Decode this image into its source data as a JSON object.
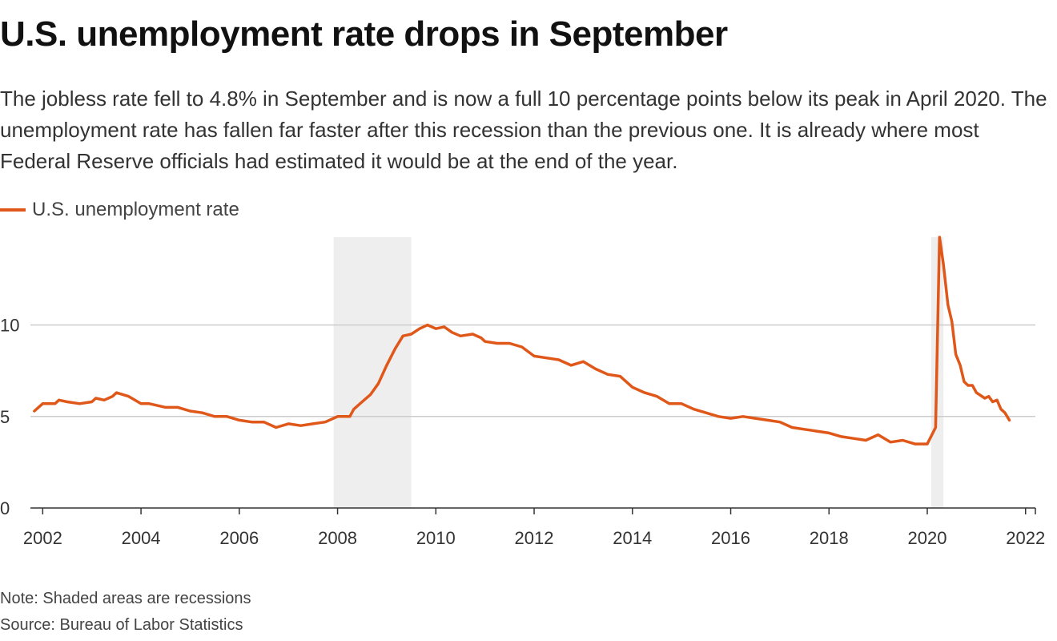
{
  "header": {
    "title": "U.S. unemployment rate drops in September",
    "subtitle": "The jobless rate fell to 4.8% in September and is now a full 10 percentage points below its peak in April 2020. The unemployment rate has fallen far faster after this recession than the previous one. It is already where most Federal Reserve officials had estimated it would be at the end of the year."
  },
  "footer": {
    "note": "Note: Shaded areas are recessions",
    "source": "Source: Bureau of Labor Statistics"
  },
  "colors": {
    "line": "#e0571a",
    "recession": "#eeeeee",
    "grid": "#cccccc",
    "axis": "#333333"
  },
  "chart_data": {
    "type": "line",
    "title": "U.S. unemployment rate drops in September",
    "series": [
      {
        "name": "U.S. unemployment rate",
        "color": "#e0571a"
      }
    ],
    "legend": "top-left",
    "grid": true,
    "xlim": [
      2001.75,
      2022.2
    ],
    "ylim": [
      0,
      14.8
    ],
    "x_ticks": [
      "2002",
      "2004",
      "2006",
      "2008",
      "2010",
      "2012",
      "2014",
      "2016",
      "2018",
      "2020",
      "2022"
    ],
    "y_ticks": [
      "0",
      "5",
      "10"
    ],
    "recessions": [
      {
        "start": 2007.92,
        "end": 2009.5
      },
      {
        "start": 2020.08,
        "end": 2020.33
      }
    ],
    "points": [
      [
        2001.83,
        5.3
      ],
      [
        2002.0,
        5.7
      ],
      [
        2002.25,
        5.7
      ],
      [
        2002.33,
        5.9
      ],
      [
        2002.5,
        5.8
      ],
      [
        2002.75,
        5.7
      ],
      [
        2003.0,
        5.8
      ],
      [
        2003.08,
        6.0
      ],
      [
        2003.25,
        5.9
      ],
      [
        2003.42,
        6.1
      ],
      [
        2003.5,
        6.3
      ],
      [
        2003.75,
        6.1
      ],
      [
        2004.0,
        5.7
      ],
      [
        2004.17,
        5.7
      ],
      [
        2004.5,
        5.5
      ],
      [
        2004.75,
        5.5
      ],
      [
        2005.0,
        5.3
      ],
      [
        2005.25,
        5.2
      ],
      [
        2005.5,
        5.0
      ],
      [
        2005.75,
        5.0
      ],
      [
        2006.0,
        4.8
      ],
      [
        2006.25,
        4.7
      ],
      [
        2006.5,
        4.7
      ],
      [
        2006.75,
        4.4
      ],
      [
        2007.0,
        4.6
      ],
      [
        2007.25,
        4.5
      ],
      [
        2007.5,
        4.6
      ],
      [
        2007.75,
        4.7
      ],
      [
        2008.0,
        5.0
      ],
      [
        2008.25,
        5.0
      ],
      [
        2008.33,
        5.4
      ],
      [
        2008.5,
        5.8
      ],
      [
        2008.67,
        6.2
      ],
      [
        2008.83,
        6.8
      ],
      [
        2009.0,
        7.8
      ],
      [
        2009.17,
        8.7
      ],
      [
        2009.33,
        9.4
      ],
      [
        2009.5,
        9.5
      ],
      [
        2009.67,
        9.8
      ],
      [
        2009.83,
        10.0
      ],
      [
        2010.0,
        9.8
      ],
      [
        2010.17,
        9.9
      ],
      [
        2010.33,
        9.6
      ],
      [
        2010.5,
        9.4
      ],
      [
        2010.75,
        9.5
      ],
      [
        2010.92,
        9.3
      ],
      [
        2011.0,
        9.1
      ],
      [
        2011.25,
        9.0
      ],
      [
        2011.5,
        9.0
      ],
      [
        2011.75,
        8.8
      ],
      [
        2012.0,
        8.3
      ],
      [
        2012.25,
        8.2
      ],
      [
        2012.5,
        8.1
      ],
      [
        2012.75,
        7.8
      ],
      [
        2013.0,
        8.0
      ],
      [
        2013.25,
        7.6
      ],
      [
        2013.5,
        7.3
      ],
      [
        2013.75,
        7.2
      ],
      [
        2014.0,
        6.6
      ],
      [
        2014.25,
        6.3
      ],
      [
        2014.5,
        6.1
      ],
      [
        2014.75,
        5.7
      ],
      [
        2015.0,
        5.7
      ],
      [
        2015.25,
        5.4
      ],
      [
        2015.5,
        5.2
      ],
      [
        2015.75,
        5.0
      ],
      [
        2016.0,
        4.9
      ],
      [
        2016.25,
        5.0
      ],
      [
        2016.5,
        4.9
      ],
      [
        2016.75,
        4.8
      ],
      [
        2017.0,
        4.7
      ],
      [
        2017.25,
        4.4
      ],
      [
        2017.5,
        4.3
      ],
      [
        2017.75,
        4.2
      ],
      [
        2018.0,
        4.1
      ],
      [
        2018.25,
        3.9
      ],
      [
        2018.5,
        3.8
      ],
      [
        2018.75,
        3.7
      ],
      [
        2019.0,
        4.0
      ],
      [
        2019.25,
        3.6
      ],
      [
        2019.5,
        3.7
      ],
      [
        2019.75,
        3.5
      ],
      [
        2020.0,
        3.5
      ],
      [
        2020.17,
        4.4
      ],
      [
        2020.25,
        14.8
      ],
      [
        2020.33,
        13.3
      ],
      [
        2020.42,
        11.1
      ],
      [
        2020.5,
        10.2
      ],
      [
        2020.58,
        8.4
      ],
      [
        2020.67,
        7.8
      ],
      [
        2020.75,
        6.9
      ],
      [
        2020.83,
        6.7
      ],
      [
        2020.92,
        6.7
      ],
      [
        2021.0,
        6.3
      ],
      [
        2021.17,
        6.0
      ],
      [
        2021.25,
        6.1
      ],
      [
        2021.33,
        5.8
      ],
      [
        2021.42,
        5.9
      ],
      [
        2021.5,
        5.4
      ],
      [
        2021.58,
        5.2
      ],
      [
        2021.67,
        4.8
      ]
    ]
  }
}
